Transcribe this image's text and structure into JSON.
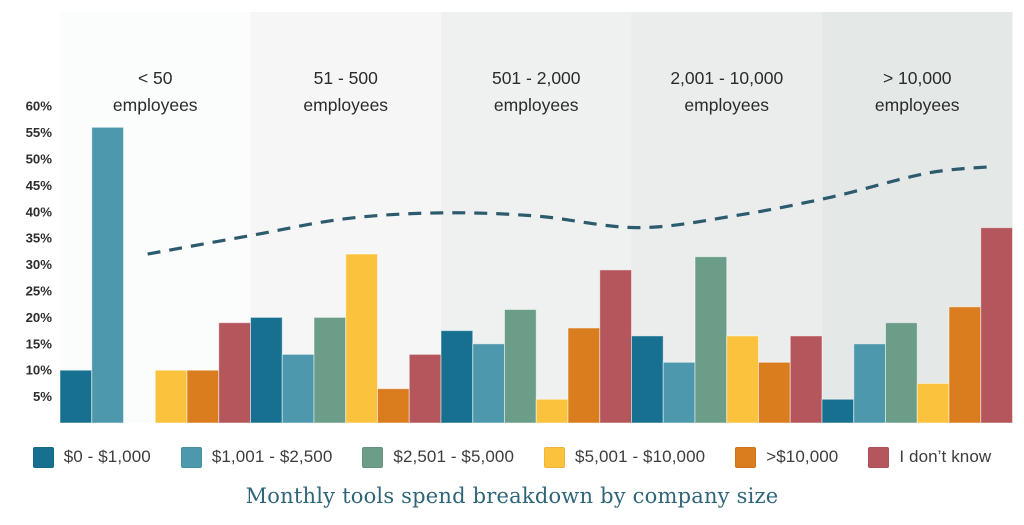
{
  "chart_data": {
    "type": "bar",
    "title": "Monthly tools spend breakdown by company size",
    "title_color": "#2f6579",
    "grid": false,
    "legend_position": "bottom",
    "ylim": [
      0,
      63
    ],
    "y_ticks": [
      "60%",
      "55%",
      "50%",
      "45%",
      "40%",
      "35%",
      "30%",
      "25%",
      "20%",
      "15%",
      "10%",
      "5%"
    ],
    "categories": [
      "< 50 employees",
      "51 - 500 employees",
      "501 - 2,000 employees",
      "2,001 - 10,000 employees",
      "> 10,000 employees"
    ],
    "category_line1": [
      "< 50",
      "51 - 500",
      "501 - 2,000",
      "2,001 - 10,000",
      "> 10,000"
    ],
    "category_line2": "employees",
    "band_colors": [
      "#fbfcfc",
      "#f5f6f5",
      "#eff1f0",
      "#eaedec",
      "#e4e8e7"
    ],
    "series": [
      {
        "name": "$0 - $1,000",
        "color": "#17708f",
        "values": [
          10,
          20,
          17.5,
          16.5,
          4.5
        ]
      },
      {
        "name": "$1,001 - $2,500",
        "color": "#4e98ad",
        "values": [
          56,
          13,
          15,
          11.5,
          15
        ]
      },
      {
        "name": "$2,501 - $5,000",
        "color": "#6b9d88",
        "values": [
          0,
          20,
          21.5,
          31.5,
          19
        ]
      },
      {
        "name": "$5,001 - $10,000",
        "color": "#fbc33d",
        "values": [
          10,
          32,
          4.5,
          16.5,
          7.5
        ]
      },
      {
        "name": ">$10,000",
        "color": "#d97d1e",
        "values": [
          10,
          6.5,
          18,
          11.5,
          22
        ]
      },
      {
        "name": "I don’t know",
        "color": "#b5565c",
        "values": [
          19,
          13,
          29,
          16.5,
          37
        ]
      }
    ],
    "trend_line": {
      "style": "dashed",
      "color": "#2d5b6e",
      "points_x_fraction_pct": [
        [
          0.092,
          32.0
        ],
        [
          0.2,
          35.5
        ],
        [
          0.3,
          38.7
        ],
        [
          0.4,
          39.8
        ],
        [
          0.5,
          39.2
        ],
        [
          0.607,
          37.0
        ],
        [
          0.71,
          39.3
        ],
        [
          0.81,
          42.8
        ],
        [
          0.91,
          47.3
        ],
        [
          0.982,
          48.6
        ]
      ]
    }
  }
}
